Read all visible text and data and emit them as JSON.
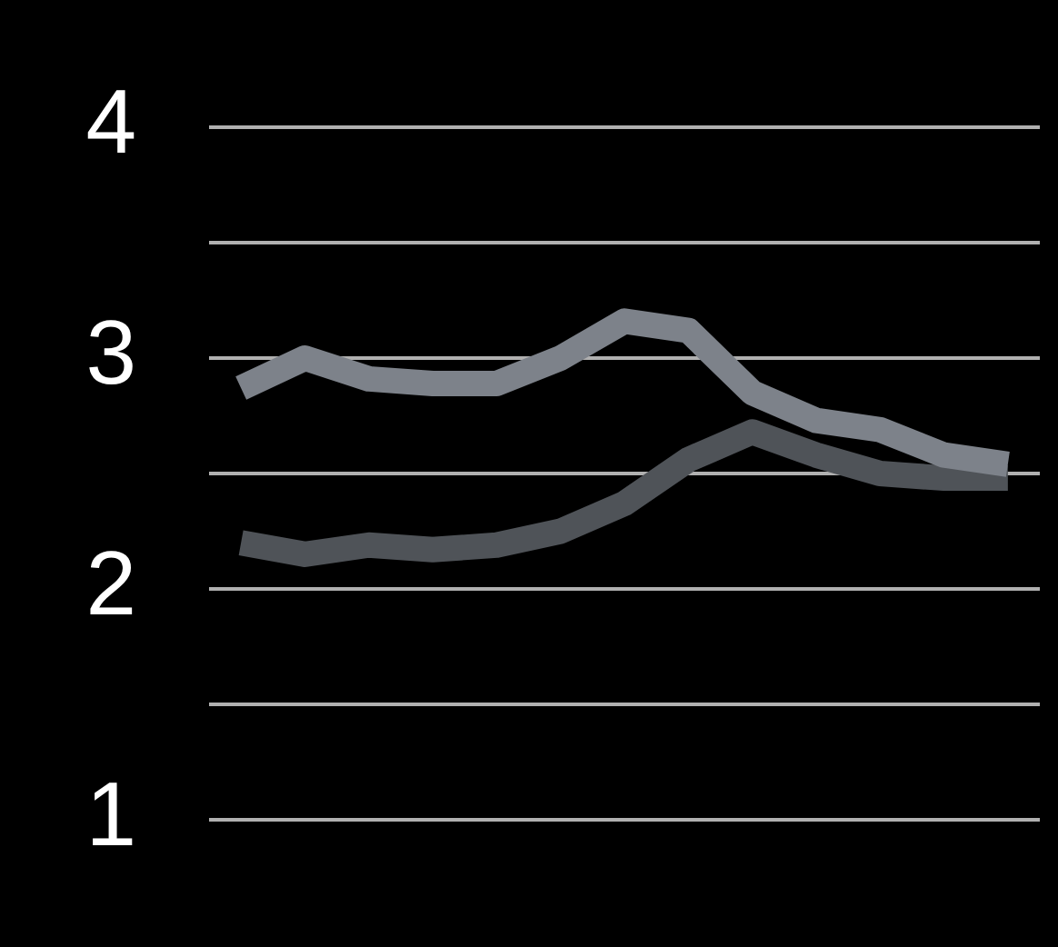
{
  "chart_data": {
    "type": "line",
    "categories": [
      null,
      null,
      null,
      null,
      null,
      null,
      null,
      null,
      null,
      null,
      null,
      null,
      null
    ],
    "series": [
      {
        "color": "#7d828a",
        "values": [
          2.87,
          3.0,
          2.91,
          2.89,
          2.89,
          3.0,
          3.16,
          3.12,
          2.85,
          2.73,
          2.69,
          2.58,
          2.54
        ]
      },
      {
        "color": "#4f5358",
        "values": [
          2.2,
          2.15,
          2.19,
          2.17,
          2.19,
          2.25,
          2.37,
          2.56,
          2.68,
          2.58,
          2.5,
          2.48,
          2.48
        ]
      }
    ],
    "ylim": [
      1,
      4
    ],
    "yticks": [
      1,
      {
        "value": 1.5,
        "label": null
      },
      2,
      {
        "value": 2.5,
        "label": null
      },
      3,
      {
        "value": 3.5,
        "label": null
      },
      4
    ],
    "grid": "y",
    "tick_labels": "y",
    "marker": "none",
    "line_style": "solid",
    "legend": false
  }
}
